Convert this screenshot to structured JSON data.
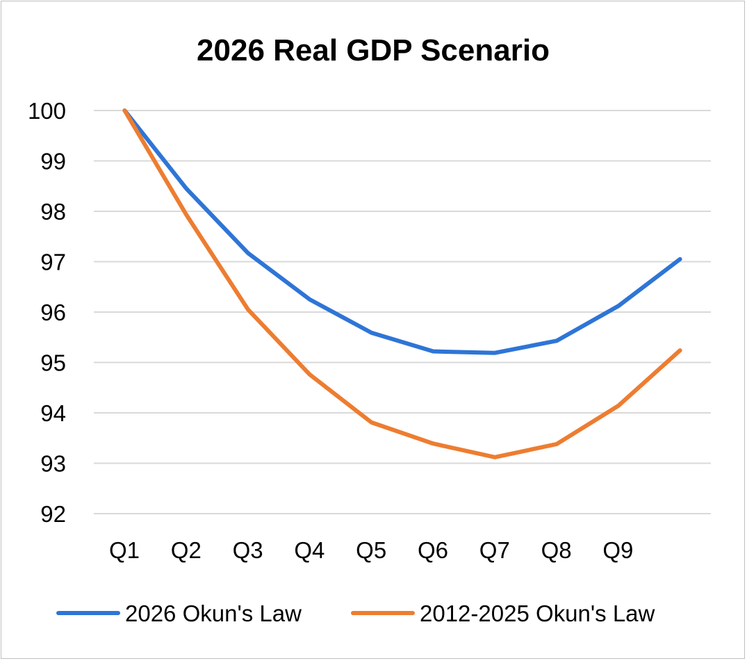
{
  "chart_data": {
    "type": "line",
    "title": "2026 Real GDP Scenario",
    "xlabel": "",
    "ylabel": "",
    "categories": [
      "Q1",
      "Q2",
      "Q3",
      "Q4",
      "Q5",
      "Q6",
      "Q7",
      "Q8",
      "Q9",
      ""
    ],
    "ylim": [
      92,
      100
    ],
    "yticks": [
      92,
      93,
      94,
      95,
      96,
      97,
      98,
      99,
      100
    ],
    "grid": true,
    "legend_position": "bottom",
    "series": [
      {
        "name": "2026 Okun's Law",
        "color": "#2E75D6",
        "values": [
          100,
          98.45,
          97.17,
          96.25,
          95.59,
          95.22,
          95.19,
          95.43,
          96.12,
          97.05
        ]
      },
      {
        "name": "2012-2025 Okun's Law",
        "color": "#ED7D31",
        "values": [
          100,
          97.93,
          96.05,
          94.76,
          93.81,
          93.39,
          93.12,
          93.38,
          94.14,
          95.24
        ]
      }
    ]
  }
}
